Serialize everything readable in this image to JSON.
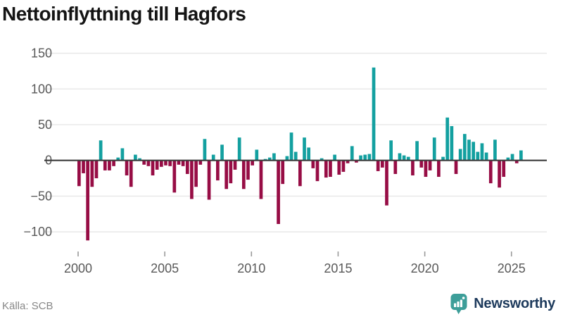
{
  "header": {
    "title": "Nettoinflyttning till Hagfors"
  },
  "footer": {
    "source_label": "Källa: SCB",
    "brand": "Newsworthy"
  },
  "colors": {
    "positive_bar": "#13a0a0",
    "negative_bar": "#970d45",
    "brand_teal": "#3d9e99",
    "brand_navy": "#1d3a5c",
    "axis_text": "#595959",
    "zero_line": "#3c3c3c",
    "grid_line": "#e7e7e7"
  },
  "chart_data": {
    "type": "bar",
    "title": "Nettoinflyttning till Hagfors",
    "xlabel": "",
    "ylabel": "",
    "x_unit": "quarter",
    "start_period": "2000Q1",
    "end_period": "2025Q3",
    "grid": true,
    "legend": "none",
    "ylim": [
      -120,
      158
    ],
    "y_ticks": [
      150,
      100,
      50,
      0,
      -50,
      -100
    ],
    "y_tick_labels": [
      "150",
      "100",
      "50",
      "0",
      "−50",
      "−100"
    ],
    "x_tick_labels": [
      "2000",
      "2005",
      "2010",
      "2015",
      "2020",
      "2025"
    ],
    "series": [
      {
        "year": 2000,
        "values": [
          -36,
          -18,
          -112,
          -37
        ]
      },
      {
        "year": 2001,
        "values": [
          -25,
          28,
          -14,
          -14
        ]
      },
      {
        "year": 2002,
        "values": [
          -8,
          4,
          17,
          -21
        ]
      },
      {
        "year": 2003,
        "values": [
          -37,
          8,
          3,
          -6
        ]
      },
      {
        "year": 2004,
        "values": [
          -8,
          -21,
          -13,
          -9
        ]
      },
      {
        "year": 2005,
        "values": [
          -7,
          -8,
          -45,
          -6
        ]
      },
      {
        "year": 2006,
        "values": [
          -8,
          -19,
          -54,
          -37
        ]
      },
      {
        "year": 2007,
        "values": [
          -6,
          30,
          -55,
          8
        ]
      },
      {
        "year": 2008,
        "values": [
          -28,
          22,
          -40,
          -32
        ]
      },
      {
        "year": 2009,
        "values": [
          -13,
          32,
          -40,
          -27
        ]
      },
      {
        "year": 2010,
        "values": [
          -7,
          15,
          -54,
          2
        ]
      },
      {
        "year": 2011,
        "values": [
          4,
          10,
          -89,
          -33
        ]
      },
      {
        "year": 2012,
        "values": [
          6,
          39,
          12,
          -36
        ]
      },
      {
        "year": 2013,
        "values": [
          32,
          18,
          -11,
          -29
        ]
      },
      {
        "year": 2014,
        "values": [
          3,
          -24,
          -23,
          8
        ]
      },
      {
        "year": 2015,
        "values": [
          -20,
          -16,
          -4,
          20
        ]
      },
      {
        "year": 2016,
        "values": [
          -3,
          7,
          8,
          9
        ]
      },
      {
        "year": 2017,
        "values": [
          130,
          -15,
          -10,
          -63
        ]
      },
      {
        "year": 2018,
        "values": [
          28,
          -19,
          10,
          7
        ]
      },
      {
        "year": 2019,
        "values": [
          5,
          -21,
          27,
          -10
        ]
      },
      {
        "year": 2020,
        "values": [
          -23,
          -14,
          32,
          -23
        ]
      },
      {
        "year": 2021,
        "values": [
          5,
          60,
          48,
          -19
        ]
      },
      {
        "year": 2022,
        "values": [
          16,
          37,
          29,
          26
        ]
      },
      {
        "year": 2023,
        "values": [
          12,
          24,
          11,
          -32
        ]
      },
      {
        "year": 2024,
        "values": [
          29,
          -38,
          -23,
          4
        ]
      },
      {
        "year": 2025,
        "values": [
          9,
          -4,
          14
        ]
      }
    ]
  }
}
